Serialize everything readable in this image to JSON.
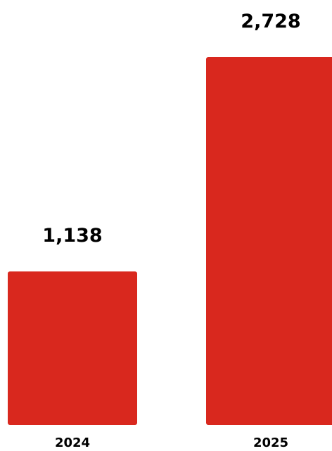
{
  "chart_data": {
    "type": "bar",
    "categories": [
      "2024",
      "2025"
    ],
    "values": [
      1138,
      2728
    ],
    "value_labels": [
      "1,138",
      "2,728"
    ],
    "title": "",
    "xlabel": "",
    "ylabel": "",
    "ylim": [
      0,
      2728
    ],
    "grid": false,
    "legend": "none",
    "bar_color": "#d9281e"
  }
}
